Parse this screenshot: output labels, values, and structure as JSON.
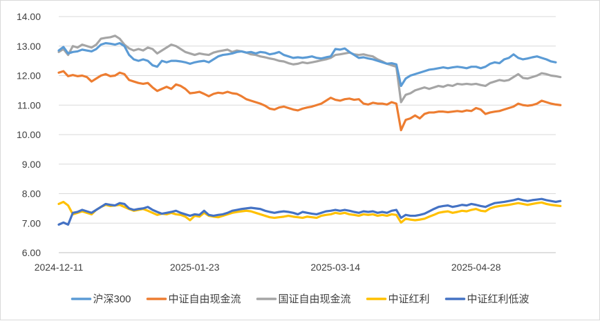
{
  "chart_data": {
    "type": "line",
    "title": "",
    "xlabel": "",
    "ylabel": "",
    "ylim": [
      6.0,
      14.0
    ],
    "y_ticks": [
      "6.00",
      "7.00",
      "8.00",
      "9.00",
      "10.00",
      "11.00",
      "12.00",
      "13.00",
      "14.00"
    ],
    "x_tick_labels": [
      {
        "label": "2024-12-11",
        "index": 0
      },
      {
        "label": "2025-01-23",
        "index": 29
      },
      {
        "label": "2025-03-14",
        "index": 59
      },
      {
        "label": "2025-04-28",
        "index": 89
      }
    ],
    "grid": "horizontal",
    "legend_position": "bottom",
    "series": [
      {
        "name": "沪深300",
        "color": "#5b9bd5",
        "values": [
          12.85,
          12.97,
          12.75,
          12.8,
          12.82,
          12.88,
          12.85,
          12.82,
          12.9,
          13.05,
          13.1,
          13.08,
          13.05,
          13.1,
          13.0,
          12.7,
          12.55,
          12.5,
          12.55,
          12.5,
          12.35,
          12.3,
          12.5,
          12.45,
          12.5,
          12.5,
          12.48,
          12.45,
          12.4,
          12.45,
          12.48,
          12.5,
          12.45,
          12.55,
          12.65,
          12.7,
          12.72,
          12.75,
          12.8,
          12.82,
          12.78,
          12.8,
          12.75,
          12.8,
          12.78,
          12.72,
          12.75,
          12.8,
          12.7,
          12.65,
          12.6,
          12.62,
          12.6,
          12.62,
          12.65,
          12.6,
          12.58,
          12.62,
          12.65,
          12.9,
          12.88,
          12.92,
          12.8,
          12.7,
          12.6,
          12.62,
          12.58,
          12.55,
          12.5,
          12.45,
          12.4,
          12.42,
          12.38,
          11.65,
          11.9,
          12.0,
          12.05,
          12.1,
          12.15,
          12.2,
          12.22,
          12.25,
          12.28,
          12.25,
          12.28,
          12.3,
          12.28,
          12.25,
          12.3,
          12.3,
          12.25,
          12.3,
          12.4,
          12.45,
          12.42,
          12.55,
          12.6,
          12.72,
          12.6,
          12.55,
          12.58,
          12.62,
          12.65,
          12.6,
          12.55,
          12.48,
          12.45
        ]
      },
      {
        "name": "中证自由现金流",
        "color": "#ed7d31",
        "values": [
          12.1,
          12.15,
          11.98,
          12.02,
          11.98,
          12.0,
          11.95,
          11.8,
          11.9,
          12.0,
          12.05,
          11.98,
          12.0,
          12.1,
          12.05,
          11.85,
          11.8,
          11.75,
          11.72,
          11.75,
          11.6,
          11.48,
          11.55,
          11.62,
          11.55,
          11.7,
          11.65,
          11.55,
          11.4,
          11.42,
          11.45,
          11.38,
          11.3,
          11.38,
          11.42,
          11.4,
          11.45,
          11.4,
          11.38,
          11.3,
          11.2,
          11.15,
          11.1,
          11.05,
          10.98,
          10.88,
          10.85,
          10.92,
          10.95,
          10.9,
          10.85,
          10.82,
          10.88,
          10.92,
          10.95,
          11.0,
          11.05,
          11.15,
          11.25,
          11.18,
          11.15,
          11.2,
          11.22,
          11.18,
          11.2,
          11.05,
          11.02,
          11.08,
          11.05,
          11.05,
          11.02,
          11.1,
          11.05,
          10.15,
          10.5,
          10.55,
          10.65,
          10.55,
          10.7,
          10.75,
          10.75,
          10.78,
          10.78,
          10.76,
          10.78,
          10.8,
          10.78,
          10.82,
          10.8,
          10.9,
          10.85,
          10.7,
          10.75,
          10.78,
          10.8,
          10.85,
          10.9,
          10.95,
          11.05,
          11.0,
          10.98,
          11.0,
          11.05,
          11.15,
          11.1,
          11.05,
          11.02,
          11.0
        ]
      },
      {
        "name": "国证自由现金流",
        "color": "#a5a5a5",
        "values": [
          12.8,
          12.9,
          12.7,
          13.0,
          12.95,
          13.05,
          13.0,
          12.95,
          13.05,
          13.25,
          13.28,
          13.3,
          13.35,
          13.25,
          13.05,
          12.92,
          12.85,
          12.9,
          12.85,
          12.95,
          12.9,
          12.75,
          12.85,
          12.95,
          13.05,
          13.0,
          12.9,
          12.8,
          12.75,
          12.7,
          12.75,
          12.72,
          12.7,
          12.78,
          12.82,
          12.85,
          12.88,
          12.8,
          12.85,
          12.82,
          12.78,
          12.72,
          12.7,
          12.65,
          12.62,
          12.58,
          12.55,
          12.5,
          12.48,
          12.42,
          12.38,
          12.4,
          12.45,
          12.42,
          12.45,
          12.48,
          12.52,
          12.55,
          12.6,
          12.7,
          12.72,
          12.75,
          12.78,
          12.72,
          12.7,
          12.72,
          12.68,
          12.65,
          12.55,
          12.48,
          12.4,
          12.35,
          12.3,
          11.1,
          11.35,
          11.4,
          11.5,
          11.55,
          11.6,
          11.55,
          11.6,
          11.65,
          11.62,
          11.68,
          11.65,
          11.72,
          11.7,
          11.72,
          11.7,
          11.72,
          11.68,
          11.65,
          11.75,
          11.8,
          11.85,
          11.82,
          11.85,
          11.95,
          12.05,
          11.92,
          11.9,
          11.95,
          12.0,
          12.08,
          12.05,
          12.0,
          11.98,
          11.95
        ]
      },
      {
        "name": "中证红利",
        "color": "#ffc000",
        "values": [
          7.65,
          7.72,
          7.6,
          7.3,
          7.35,
          7.4,
          7.35,
          7.3,
          7.45,
          7.55,
          7.62,
          7.58,
          7.6,
          7.62,
          7.55,
          7.48,
          7.42,
          7.45,
          7.48,
          7.42,
          7.35,
          7.28,
          7.32,
          7.3,
          7.35,
          7.3,
          7.28,
          7.22,
          7.1,
          7.25,
          7.22,
          7.35,
          7.25,
          7.22,
          7.2,
          7.25,
          7.3,
          7.35,
          7.38,
          7.4,
          7.42,
          7.4,
          7.35,
          7.3,
          7.25,
          7.2,
          7.18,
          7.2,
          7.22,
          7.25,
          7.22,
          7.2,
          7.18,
          7.22,
          7.2,
          7.18,
          7.25,
          7.28,
          7.3,
          7.35,
          7.32,
          7.35,
          7.3,
          7.28,
          7.25,
          7.3,
          7.28,
          7.3,
          7.25,
          7.28,
          7.25,
          7.3,
          7.28,
          7.02,
          7.15,
          7.12,
          7.1,
          7.12,
          7.15,
          7.22,
          7.28,
          7.35,
          7.38,
          7.4,
          7.35,
          7.38,
          7.42,
          7.4,
          7.45,
          7.48,
          7.42,
          7.4,
          7.5,
          7.55,
          7.58,
          7.6,
          7.62,
          7.65,
          7.68,
          7.65,
          7.62,
          7.65,
          7.68,
          7.7,
          7.65,
          7.62,
          7.6,
          7.58
        ]
      },
      {
        "name": "中证红利低波",
        "color": "#4472c4",
        "values": [
          6.95,
          7.02,
          6.95,
          7.35,
          7.38,
          7.45,
          7.4,
          7.35,
          7.45,
          7.55,
          7.65,
          7.62,
          7.6,
          7.68,
          7.65,
          7.5,
          7.45,
          7.48,
          7.5,
          7.55,
          7.45,
          7.38,
          7.32,
          7.35,
          7.38,
          7.42,
          7.35,
          7.3,
          7.25,
          7.3,
          7.28,
          7.42,
          7.28,
          7.25,
          7.28,
          7.3,
          7.35,
          7.42,
          7.45,
          7.48,
          7.5,
          7.52,
          7.5,
          7.48,
          7.42,
          7.38,
          7.35,
          7.38,
          7.4,
          7.38,
          7.35,
          7.3,
          7.38,
          7.35,
          7.32,
          7.3,
          7.35,
          7.4,
          7.42,
          7.45,
          7.42,
          7.45,
          7.42,
          7.38,
          7.35,
          7.4,
          7.38,
          7.4,
          7.35,
          7.38,
          7.35,
          7.42,
          7.45,
          7.18,
          7.28,
          7.25,
          7.25,
          7.28,
          7.32,
          7.4,
          7.48,
          7.55,
          7.58,
          7.6,
          7.55,
          7.58,
          7.62,
          7.6,
          7.65,
          7.62,
          7.58,
          7.55,
          7.62,
          7.68,
          7.7,
          7.72,
          7.75,
          7.78,
          7.82,
          7.78,
          7.75,
          7.78,
          7.8,
          7.82,
          7.78,
          7.75,
          7.72,
          7.75
        ]
      }
    ]
  }
}
